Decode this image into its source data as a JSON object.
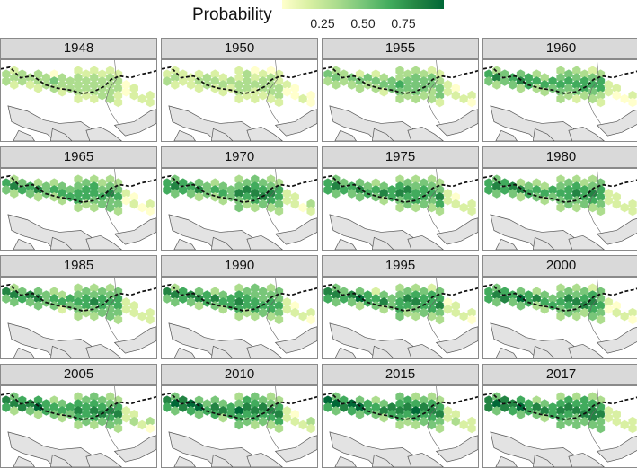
{
  "legend": {
    "title": "Probability",
    "ticks": [
      "0.25",
      "0.50",
      "0.75"
    ],
    "tick_values": [
      0.25,
      0.5,
      0.75
    ],
    "range": [
      0.0,
      1.0
    ],
    "colors": [
      "#ffffcc",
      "#d9f0a3",
      "#addd8e",
      "#78c679",
      "#41ab5d",
      "#238443",
      "#006837"
    ]
  },
  "panels": [
    {
      "year": "1948",
      "level": 0.4
    },
    {
      "year": "1950",
      "level": 0.35
    },
    {
      "year": "1955",
      "level": 0.55
    },
    {
      "year": "1960",
      "level": 0.7
    },
    {
      "year": "1965",
      "level": 0.75
    },
    {
      "year": "1970",
      "level": 0.78
    },
    {
      "year": "1975",
      "level": 0.8
    },
    {
      "year": "1980",
      "level": 0.78
    },
    {
      "year": "1985",
      "level": 0.75
    },
    {
      "year": "1990",
      "level": 0.78
    },
    {
      "year": "1995",
      "level": 0.8
    },
    {
      "year": "2000",
      "level": 0.8
    },
    {
      "year": "2005",
      "level": 0.85
    },
    {
      "year": "2010",
      "level": 0.88
    },
    {
      "year": "2015",
      "level": 0.9
    },
    {
      "year": "2017",
      "level": 0.9
    }
  ]
}
